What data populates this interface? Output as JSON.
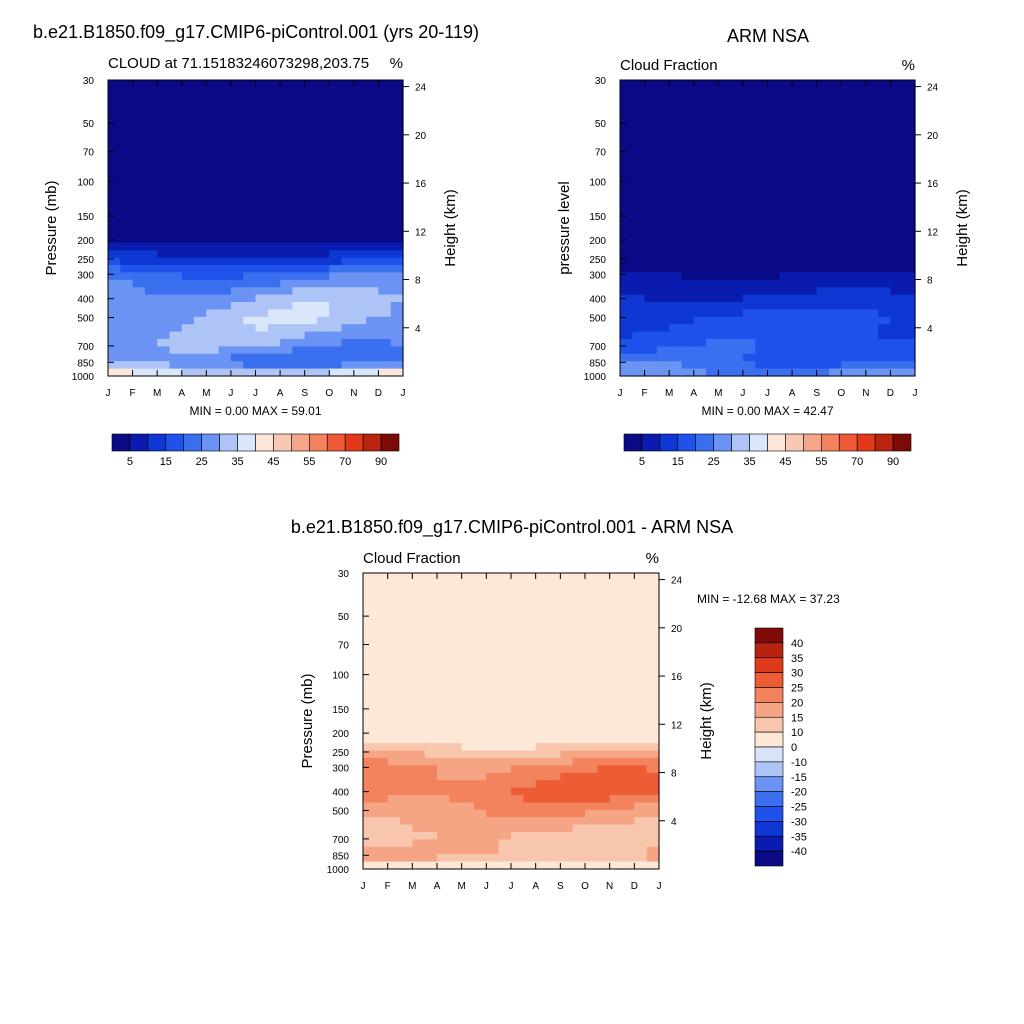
{
  "chart_data": [
    {
      "type": "heatmap",
      "title": "b.e21.B1850.f09_g17.CMIP6-piControl.001 (yrs 20-119)",
      "subtitle_left": "CLOUD at 71.15183246073298,203.75",
      "subtitle_right": "%",
      "ylabel": "Pressure (mb)",
      "y2label": "Height (km)",
      "x_ticklabels": [
        "J",
        "F",
        "M",
        "A",
        "M",
        "J",
        "J",
        "A",
        "S",
        "O",
        "N",
        "D",
        "J"
      ],
      "y_ticks": [
        30,
        50,
        70,
        100,
        150,
        200,
        250,
        300,
        400,
        500,
        700,
        850,
        1000
      ],
      "y2_ticks": [
        24,
        20,
        16,
        12,
        8,
        4
      ],
      "stat_min_label": "MIN =",
      "stat_min": "0.00",
      "stat_max_label": "MAX =",
      "stat_max": "59.01",
      "colorbar_labels": [
        "5",
        "15",
        "25",
        "35",
        "45",
        "55",
        "70",
        "90"
      ],
      "z_profile_by_pressure": [
        {
          "p": 30,
          "v": 1
        },
        {
          "p": 150,
          "v": 1
        },
        {
          "p": 200,
          "v": 3
        },
        {
          "p": 250,
          "v": 12
        },
        {
          "p": 300,
          "v": 22
        },
        {
          "p": 400,
          "v": 30
        },
        {
          "p": 500,
          "v": 32
        },
        {
          "p": 700,
          "v": 28
        },
        {
          "p": 850,
          "v": 22
        },
        {
          "p": 950,
          "v": 40
        },
        {
          "p": 1000,
          "v": 8
        }
      ]
    },
    {
      "type": "heatmap",
      "title": "ARM NSA",
      "subtitle_left": "Cloud Fraction",
      "subtitle_right": "%",
      "ylabel": "pressure level",
      "y2label": "Height (km)",
      "x_ticklabels": [
        "J",
        "F",
        "M",
        "A",
        "M",
        "J",
        "J",
        "A",
        "S",
        "O",
        "N",
        "D",
        "J"
      ],
      "y_ticks": [
        30,
        50,
        70,
        100,
        150,
        200,
        250,
        300,
        400,
        500,
        700,
        850,
        1000
      ],
      "y2_ticks": [
        24,
        20,
        16,
        12,
        8,
        4
      ],
      "stat_min_label": "MIN =",
      "stat_min": "0.00",
      "stat_max_label": "MAX =",
      "stat_max": "42.47",
      "colorbar_labels": [
        "5",
        "15",
        "25",
        "35",
        "45",
        "55",
        "70",
        "90"
      ],
      "z_profile_by_pressure": [
        {
          "p": 30,
          "v": 1
        },
        {
          "p": 250,
          "v": 1
        },
        {
          "p": 300,
          "v": 5
        },
        {
          "p": 400,
          "v": 11
        },
        {
          "p": 500,
          "v": 16
        },
        {
          "p": 700,
          "v": 18
        },
        {
          "p": 850,
          "v": 20
        },
        {
          "p": 950,
          "v": 28
        },
        {
          "p": 1000,
          "v": 12
        }
      ]
    },
    {
      "type": "heatmap",
      "title": "b.e21.B1850.f09_g17.CMIP6-piControl.001 - ARM NSA",
      "subtitle_left": "Cloud Fraction",
      "subtitle_right": "%",
      "ylabel": "Pressure (mb)",
      "y2label": "Height (km)",
      "x_ticklabels": [
        "J",
        "F",
        "M",
        "A",
        "M",
        "J",
        "J",
        "A",
        "S",
        "O",
        "N",
        "D",
        "J"
      ],
      "y_ticks": [
        30,
        50,
        70,
        100,
        150,
        200,
        250,
        300,
        400,
        500,
        700,
        850,
        1000
      ],
      "y2_ticks": [
        24,
        20,
        16,
        12,
        8,
        4
      ],
      "stat_min_label": "MIN =",
      "stat_min": "-12.68",
      "stat_max_label": "MAX =",
      "stat_max": "37.23",
      "colorbar_labels": [
        "40",
        "35",
        "30",
        "25",
        "20",
        "15",
        "10",
        "0",
        "-10",
        "-15",
        "-20",
        "-25",
        "-30",
        "-35",
        "-40"
      ],
      "z_profile_by_pressure": [
        {
          "p": 30,
          "v": 2
        },
        {
          "p": 90,
          "v": 1
        },
        {
          "p": 130,
          "v": 2
        },
        {
          "p": 200,
          "v": 3
        },
        {
          "p": 250,
          "v": 14
        },
        {
          "p": 300,
          "v": 22
        },
        {
          "p": 400,
          "v": 25
        },
        {
          "p": 500,
          "v": 19
        },
        {
          "p": 700,
          "v": 13
        },
        {
          "p": 850,
          "v": 16
        },
        {
          "p": 1000,
          "v": 5
        }
      ]
    }
  ],
  "colors": {
    "seq_colormap": [
      "#0a0a87",
      "#0a1cb0",
      "#0e37d4",
      "#1f52eb",
      "#3a6ff0",
      "#6a93f3",
      "#aec4f6",
      "#d9e6fb",
      "#fbe6d8",
      "#f7c8b3",
      "#f5a689",
      "#f4825f",
      "#ee5a35",
      "#e0391c",
      "#b82410",
      "#7c0a07"
    ],
    "div_colormap": [
      "#0a0a87",
      "#0a1cb0",
      "#0e37d4",
      "#1f52eb",
      "#3a6ff0",
      "#6a93f3",
      "#aec4f6",
      "#d7e4fa",
      "#fde8d8",
      "#f8c6ad",
      "#f5a584",
      "#f2835d",
      "#ee5c35",
      "#df3a19",
      "#b6230e",
      "#7f0a06"
    ]
  }
}
